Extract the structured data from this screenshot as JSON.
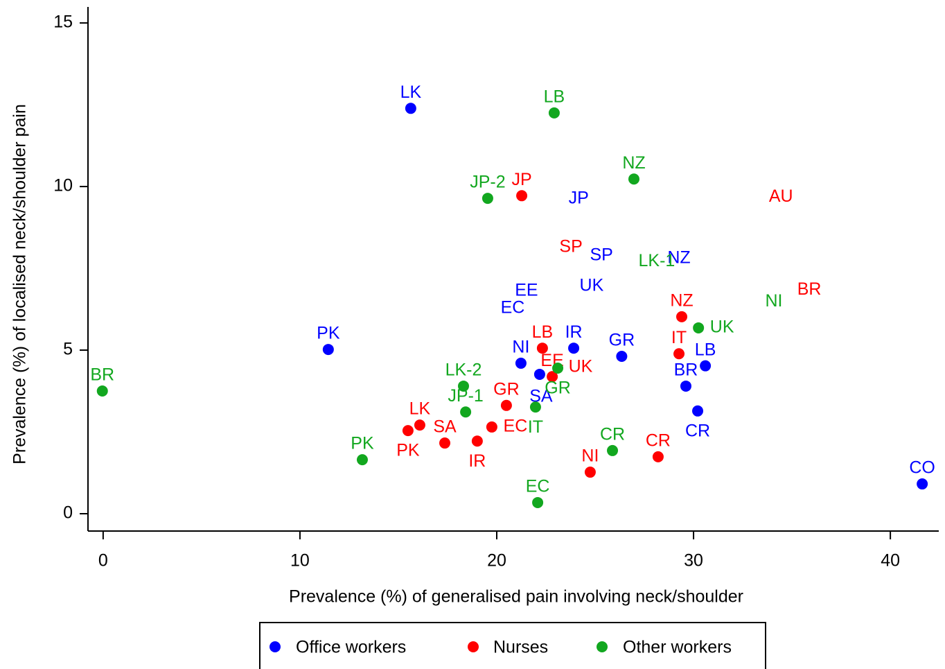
{
  "chart_data": {
    "type": "scatter",
    "x_label": "Prevalence (%) of generalised pain involving neck/shoulder",
    "y_label": "Prevalence (%) of localised neck/shoulder pain",
    "xlim": [
      -0.77,
      42.46
    ],
    "ylim": [
      -0.53,
      15.49
    ],
    "xticks": [
      0,
      10,
      20,
      30,
      40
    ],
    "yticks": [
      0,
      5,
      10,
      15
    ],
    "legend": "bottom",
    "series": [
      {
        "name": "Office workers",
        "color": "#0000ff",
        "labels": [
          "LK",
          "PK",
          "NI",
          "IR",
          "GR",
          "BR",
          "LB",
          "CR",
          "CO",
          null,
          "EC",
          "EE",
          "JP",
          "SP",
          "UK",
          "NZ",
          "SA"
        ],
        "x": [
          15.63,
          11.44,
          21.23,
          23.91,
          26.35,
          29.61,
          30.6,
          30.21,
          41.62,
          22.18,
          20.81,
          21.51,
          24.16,
          25.32,
          24.82,
          29.26,
          22.25
        ],
        "y": [
          12.39,
          5.02,
          4.6,
          5.06,
          4.81,
          3.9,
          4.52,
          3.14,
          0.91,
          4.26,
          6.27,
          6.8,
          9.62,
          7.88,
          6.95,
          7.8,
          3.56
        ],
        "markers": [
          true,
          true,
          true,
          true,
          true,
          true,
          true,
          true,
          true,
          true,
          false,
          false,
          false,
          false,
          false,
          false,
          false
        ],
        "label_pos": [
          "above",
          "above",
          "above",
          "above",
          "above",
          "above",
          "above",
          "below",
          "above",
          "above",
          "above",
          "above",
          "above",
          "above",
          "above",
          "above",
          "above"
        ]
      },
      {
        "name": "Nurses",
        "color": "#ff0000",
        "labels": [
          "JP",
          "LB",
          "EE",
          "UK",
          "GR",
          "EC",
          "IR",
          "SA",
          "LK",
          "PK",
          "NI",
          "CR",
          "IT",
          "NZ",
          "SP",
          "AU",
          "BR"
        ],
        "x": [
          21.27,
          22.32,
          22.82,
          24.26,
          20.49,
          19.75,
          19.01,
          17.36,
          16.09,
          15.49,
          24.75,
          28.2,
          29.26,
          29.4,
          23.77,
          34.44,
          35.88
        ],
        "y": [
          9.72,
          5.06,
          4.19,
          4.47,
          3.31,
          2.65,
          2.22,
          2.16,
          2.71,
          2.54,
          1.27,
          1.74,
          4.89,
          6.02,
          8.14,
          9.68,
          6.84
        ],
        "markers": [
          true,
          true,
          true,
          false,
          true,
          true,
          true,
          true,
          true,
          true,
          true,
          true,
          true,
          true,
          false,
          false,
          false
        ],
        "label_pos": [
          "above",
          "above",
          "above",
          "above",
          "above",
          "right",
          "below",
          "above",
          "above",
          "below",
          "above",
          "above",
          "above",
          "above",
          "above",
          "above",
          "above"
        ]
      },
      {
        "name": "Other workers",
        "color": "#12a71f",
        "labels": [
          "BR",
          "PK",
          "LK-2",
          "JP-1",
          "JP-2",
          "LB",
          "NZ",
          "IT",
          "GR",
          "EC",
          "CR",
          "UK",
          "LK-1",
          "NI"
        ],
        "x": [
          -0.04,
          13.17,
          18.31,
          18.42,
          19.54,
          22.92,
          26.97,
          21.97,
          23.1,
          22.08,
          25.88,
          30.25,
          28.13,
          34.08
        ],
        "y": [
          3.75,
          1.65,
          3.9,
          3.11,
          9.64,
          12.25,
          10.23,
          3.26,
          4.45,
          0.34,
          1.93,
          5.68,
          7.71,
          6.48
        ],
        "markers": [
          true,
          true,
          true,
          true,
          true,
          true,
          true,
          true,
          true,
          true,
          true,
          true,
          false,
          false
        ],
        "label_pos": [
          "above",
          "above",
          "above",
          "above",
          "above",
          "above",
          "above",
          "below",
          "below",
          "above",
          "above",
          "right",
          "above",
          "above"
        ]
      }
    ]
  }
}
